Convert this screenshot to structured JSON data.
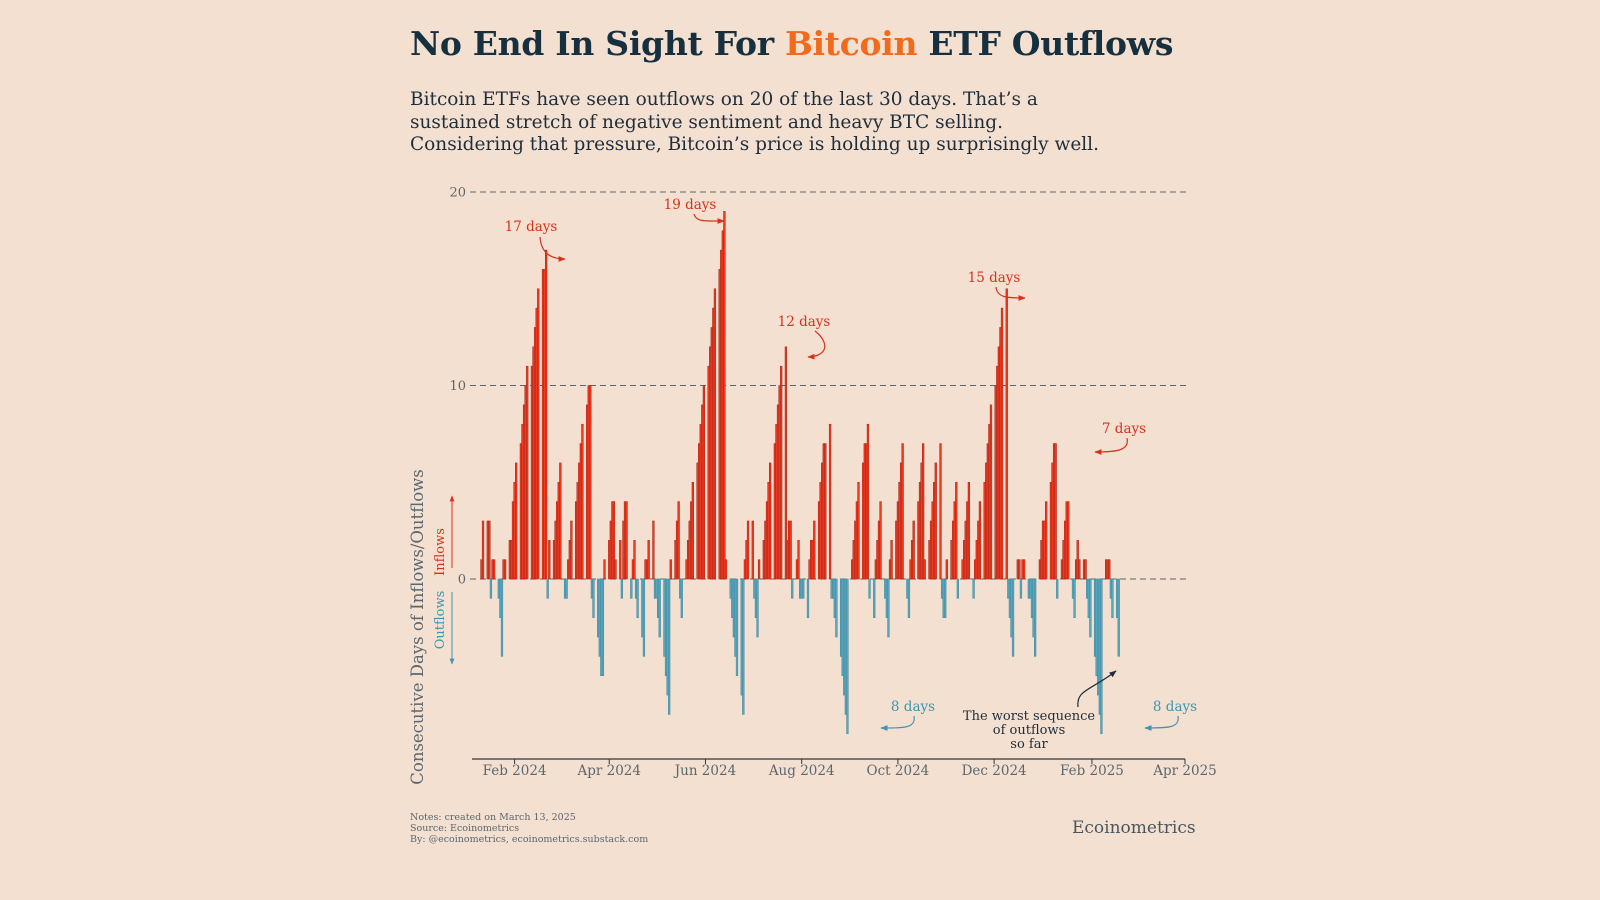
{
  "header": {
    "title_before": "No End In Sight For ",
    "title_highlight": "Bitcoin",
    "title_after": " ETF Outflows",
    "subtitle": "Bitcoin ETFs have seen outflows on 20 of the last 30 days. That’s a sustained stretch of negative sentiment and heavy BTC selling. Considering that pressure, Bitcoin’s price is holding up surprisingly well."
  },
  "colors": {
    "background": "#f3e0d0",
    "inflow": "#f03a22",
    "inflow_stroke": "#a82414",
    "outflow": "#5aa6bd",
    "outflow_stroke": "#3e8aa2",
    "title_accent": "#f26b1d",
    "text": "#1f2d3a",
    "axis_text": "#5b6770"
  },
  "chart_data": {
    "type": "bar",
    "ylabel": "Consecutive Days of Inflows/Outflows",
    "ylabel_inflows": "Inflows",
    "ylabel_outflows": "Outflows",
    "ylim": [
      -8,
      20
    ],
    "yticks": [
      0,
      10,
      20
    ],
    "xlim": [
      "2024-01-05",
      "2025-04-01"
    ],
    "xticks": [
      {
        "date": "2024-02-01",
        "label": "Feb 2024"
      },
      {
        "date": "2024-04-01",
        "label": "Apr 2024"
      },
      {
        "date": "2024-06-01",
        "label": "Jun 2024"
      },
      {
        "date": "2024-08-01",
        "label": "Aug 2024"
      },
      {
        "date": "2024-10-01",
        "label": "Oct 2024"
      },
      {
        "date": "2024-12-01",
        "label": "Dec 2024"
      },
      {
        "date": "2025-02-01",
        "label": "Feb 2025"
      },
      {
        "date": "2025-04-01",
        "label": "Apr 2025"
      }
    ],
    "grid": "dashed horizontal",
    "series": [
      {
        "start": "2024-01-11",
        "values": [
          1,
          3,
          3,
          3,
          -1,
          1,
          1,
          -1,
          -2,
          -4,
          1,
          1,
          2,
          2,
          4,
          5,
          6,
          7,
          8,
          9,
          10,
          11,
          11,
          12,
          13,
          14,
          15,
          16,
          16,
          17,
          -1,
          2,
          2,
          3,
          4,
          5,
          6,
          -1,
          -1,
          1,
          2,
          3,
          4,
          5,
          6,
          7,
          8,
          9,
          10,
          10,
          -1,
          -2,
          -3,
          -4,
          -5,
          -5,
          1,
          2,
          3,
          4,
          4,
          1,
          2,
          -1,
          3,
          4,
          4,
          -1,
          1,
          2,
          -1,
          -2,
          -3,
          -4,
          1,
          1,
          2,
          3,
          -1,
          -1,
          -2,
          -3,
          -4,
          -5,
          -6,
          -7,
          1,
          2,
          3,
          4,
          -1,
          -2,
          1,
          2,
          3,
          4,
          5,
          6,
          7,
          8,
          9,
          10,
          11,
          12,
          13,
          14,
          15,
          16,
          17,
          18,
          19,
          1,
          -1,
          -2,
          -3,
          -4,
          -5,
          -6,
          -7,
          1,
          2,
          3,
          3,
          -1,
          -2,
          -3,
          1,
          2,
          3,
          4,
          5,
          6,
          7,
          8,
          9,
          10,
          11,
          12,
          2,
          3,
          3,
          -1,
          1,
          2,
          -1,
          -1,
          -1,
          -2,
          1,
          2,
          2,
          3,
          4,
          5,
          6,
          7,
          7,
          8,
          -1,
          -1,
          -2,
          -3,
          -4,
          -5,
          -6,
          -7,
          -8,
          1,
          2,
          3,
          4,
          5,
          6,
          7,
          7,
          8,
          -1,
          -2,
          1,
          2,
          3,
          4,
          -1,
          -2,
          -3,
          1,
          2,
          3,
          4,
          5,
          6,
          7,
          -1,
          -2,
          1,
          2,
          3,
          4,
          5,
          6,
          7,
          1,
          2,
          3,
          4,
          5,
          6,
          7,
          -1,
          -2,
          -2,
          1,
          2,
          3,
          4,
          5,
          -1,
          1,
          2,
          3,
          4,
          5,
          -1,
          1,
          2,
          3,
          4,
          5,
          6,
          7,
          8,
          9,
          10,
          11,
          12,
          13,
          14,
          15,
          -1,
          -2,
          -3,
          -4,
          1,
          1,
          -1,
          1,
          1,
          -1,
          -1,
          -2,
          -3,
          -4,
          1,
          2,
          3,
          3,
          4,
          5,
          6,
          7,
          7,
          -1,
          1,
          2,
          3,
          4,
          4,
          -1,
          -2,
          1,
          2,
          1,
          1,
          1,
          -1,
          -2,
          -3,
          -4,
          -5,
          -6,
          -7,
          -8,
          1,
          1,
          1,
          -1,
          -2,
          -2,
          -4
        ]
      }
    ],
    "annotations": [
      {
        "text": "17 days",
        "type": "inflow"
      },
      {
        "text": "19 days",
        "type": "inflow"
      },
      {
        "text": "12 days",
        "type": "inflow"
      },
      {
        "text": "15 days",
        "type": "inflow"
      },
      {
        "text": "7 days",
        "type": "inflow"
      },
      {
        "text": "8 days",
        "type": "outflow"
      },
      {
        "text": "8 days",
        "type": "outflow"
      },
      {
        "text": "The worst sequence",
        "type": "note"
      },
      {
        "text": "of outflows",
        "type": "note"
      },
      {
        "text": "so far",
        "type": "note"
      }
    ]
  },
  "footer": {
    "notes": "Notes: created on March 13, 2025",
    "source": "Source: Ecoinometrics",
    "by": "By: @ecoinometrics, ecoinometrics.substack.com",
    "brand": "Ecoinometrics"
  }
}
